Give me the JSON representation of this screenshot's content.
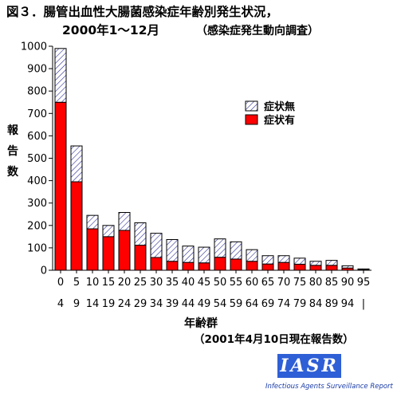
{
  "title": {
    "line1": "図３．腸管出血性大腸菌感染症年齢別発生状況，",
    "line2": "2000年1～12月",
    "subtitle": "（感染症発生動向調査）"
  },
  "note": "（2001年4月10日現在報告数）",
  "logo": {
    "text": "IASR",
    "caption": "Infectious Agents Surveillance Report"
  },
  "colors": {
    "with_symptoms": "#ff0000",
    "without_symptoms_hatch": "#1a1a8c"
  },
  "chart_data": {
    "type": "bar",
    "stacked": true,
    "ylabel": "報告数",
    "xlabel": "年齢群",
    "ylim": [
      0,
      1000
    ],
    "yticks": [
      0,
      100,
      200,
      300,
      400,
      500,
      600,
      700,
      800,
      900,
      1000
    ],
    "legend_position": "top-right",
    "categories": [
      {
        "top": "0",
        "bottom": "4"
      },
      {
        "top": "5",
        "bottom": "9"
      },
      {
        "top": "10",
        "bottom": "14"
      },
      {
        "top": "15",
        "bottom": "19"
      },
      {
        "top": "20",
        "bottom": "24"
      },
      {
        "top": "25",
        "bottom": "29"
      },
      {
        "top": "30",
        "bottom": "34"
      },
      {
        "top": "35",
        "bottom": "39"
      },
      {
        "top": "40",
        "bottom": "44"
      },
      {
        "top": "45",
        "bottom": "49"
      },
      {
        "top": "50",
        "bottom": "54"
      },
      {
        "top": "55",
        "bottom": "59"
      },
      {
        "top": "60",
        "bottom": "64"
      },
      {
        "top": "65",
        "bottom": "69"
      },
      {
        "top": "70",
        "bottom": "74"
      },
      {
        "top": "75",
        "bottom": "79"
      },
      {
        "top": "80",
        "bottom": "84"
      },
      {
        "top": "85",
        "bottom": "89"
      },
      {
        "top": "90",
        "bottom": "94"
      },
      {
        "top": "95",
        "bottom": "|"
      }
    ],
    "series": [
      {
        "name": "症状有",
        "values": [
          750,
          395,
          185,
          150,
          178,
          112,
          57,
          40,
          35,
          33,
          58,
          50,
          40,
          28,
          35,
          27,
          22,
          22,
          10,
          2
        ]
      },
      {
        "name": "症状無",
        "values": [
          240,
          160,
          60,
          50,
          80,
          100,
          108,
          97,
          73,
          70,
          82,
          77,
          52,
          37,
          30,
          27,
          18,
          22,
          10,
          4
        ]
      }
    ]
  }
}
